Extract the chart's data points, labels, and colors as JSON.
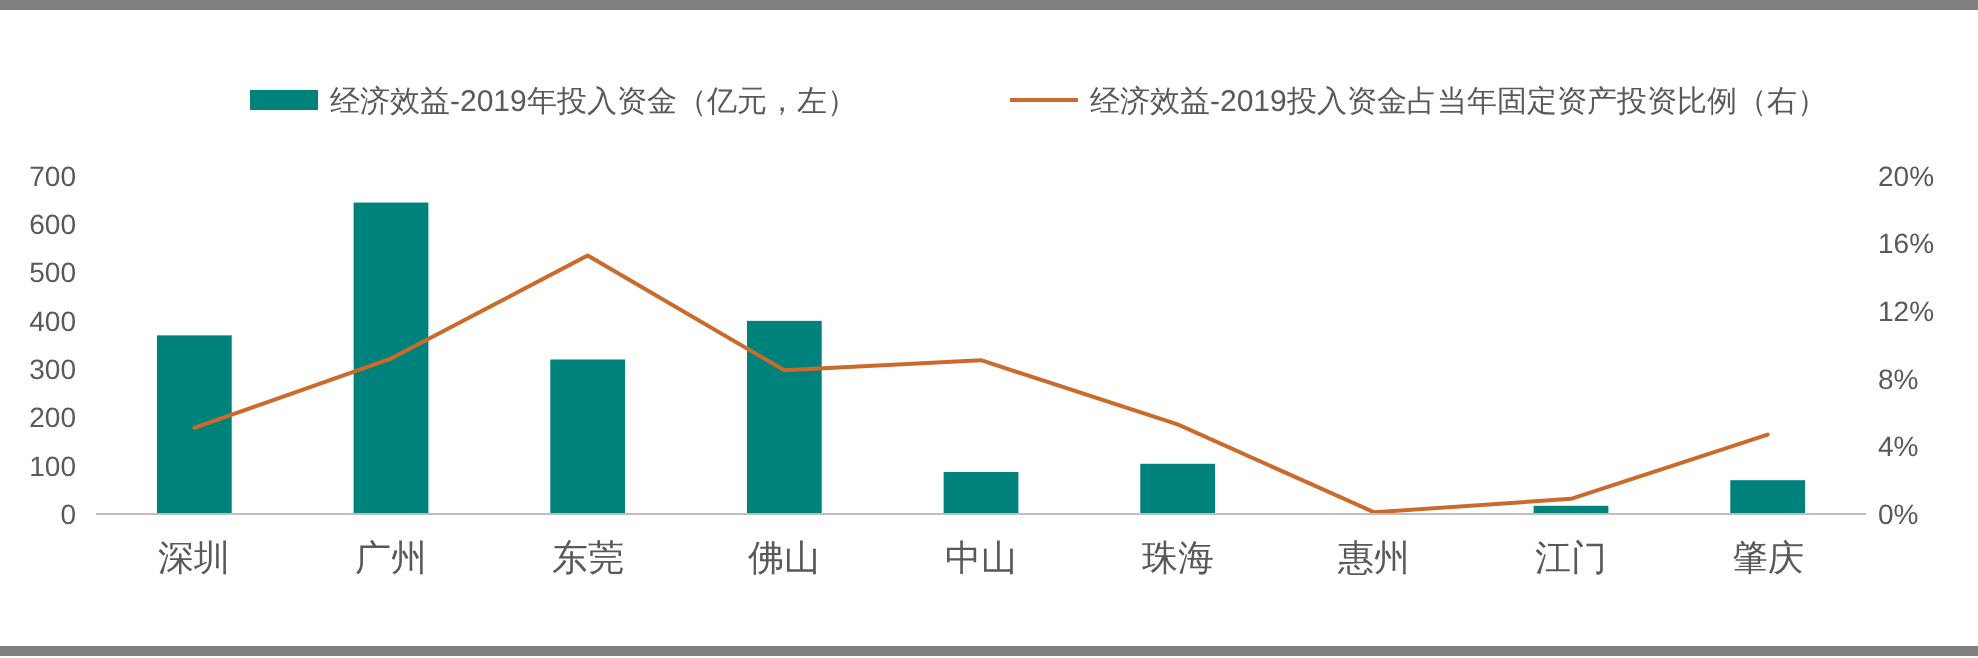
{
  "chart_data": {
    "type": "bar",
    "categories": [
      "深圳",
      "广州",
      "东莞",
      "佛山",
      "中山",
      "珠海",
      "惠州",
      "江门",
      "肇庆"
    ],
    "series": [
      {
        "name": "经济效益-2019年投入资金（亿元，左）",
        "color": "#00827c",
        "values": [
          370,
          645,
          320,
          400,
          87,
          104,
          0,
          17,
          70
        ]
      },
      {
        "name": "经济效益-2019投入资金占当年固定资产投资比例（右）",
        "type": "line",
        "axis": "y2",
        "color": "#cc6a2c",
        "values": [
          5.1,
          9.2,
          15.3,
          8.5,
          9.1,
          5.3,
          0.1,
          0.9,
          4.7
        ]
      }
    ],
    "ylim": [
      0,
      700
    ],
    "yticks": [
      0,
      100,
      200,
      300,
      400,
      500,
      600,
      700
    ],
    "y2lim": [
      0,
      20
    ],
    "y2ticks": [
      {
        "value": 0,
        "label": "0%"
      },
      {
        "value": 4,
        "label": "4%"
      },
      {
        "value": 8,
        "label": "8%"
      },
      {
        "value": 12,
        "label": "12%"
      },
      {
        "value": 16,
        "label": "16%"
      },
      {
        "value": 20,
        "label": "20%"
      }
    ],
    "legend": "top",
    "grid": false,
    "marker": "none",
    "line_style": "solid"
  }
}
